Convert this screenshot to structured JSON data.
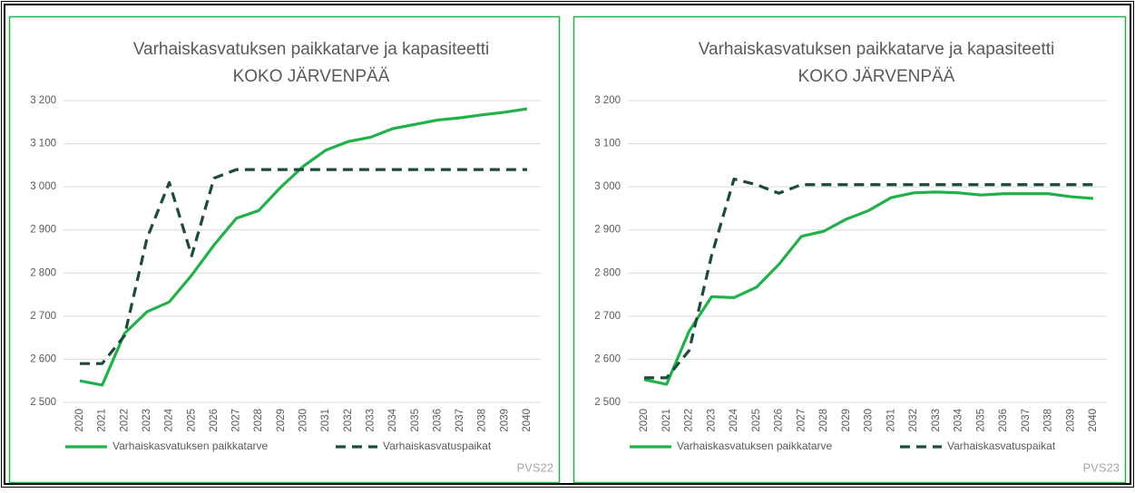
{
  "chart_data": [
    {
      "type": "line",
      "title": "Varhaiskasvatuksen paikkatarve ja kapasiteetti",
      "subtitle": "KOKO JÄRVENPÄÄ",
      "footnote": "PVS22",
      "categories": [
        "2020",
        "2021",
        "2022",
        "2023",
        "2024",
        "2025",
        "2026",
        "2027",
        "2028",
        "2029",
        "2030",
        "2031",
        "2032",
        "2033",
        "2034",
        "2035",
        "2036",
        "2037",
        "2038",
        "2039",
        "2040"
      ],
      "series": [
        {
          "name": "Varhaiskasvatuksen paikkatarve",
          "color": "#22b04b",
          "line_style": "solid",
          "values": [
            2550,
            2540,
            2660,
            2710,
            2733,
            2795,
            2865,
            2927,
            2945,
            3000,
            3048,
            3085,
            3105,
            3115,
            3135,
            3145,
            3155,
            3160,
            3167,
            3173,
            3181
          ]
        },
        {
          "name": "Varhaiskasvatuspaikat",
          "color": "#1c4a3c",
          "line_style": "dashed",
          "values": [
            2590,
            2590,
            2655,
            2880,
            3010,
            2840,
            3020,
            3040,
            3040,
            3040,
            3040,
            3040,
            3040,
            3040,
            3040,
            3040,
            3040,
            3040,
            3040,
            3040,
            3040
          ]
        }
      ],
      "ylim": [
        2500,
        3200
      ],
      "yticks": [
        {
          "value": 2500,
          "label": "2 500"
        },
        {
          "value": 2600,
          "label": "2 600"
        },
        {
          "value": 2700,
          "label": "2 700"
        },
        {
          "value": 2800,
          "label": "2 800"
        },
        {
          "value": 2900,
          "label": "2 900"
        },
        {
          "value": 3000,
          "label": "3 000"
        },
        {
          "value": 3100,
          "label": "3 100"
        },
        {
          "value": 3200,
          "label": "3 200"
        }
      ],
      "grid": true,
      "legend": "bottom"
    },
    {
      "type": "line",
      "title": "Varhaiskasvatuksen paikkatarve ja kapasiteetti",
      "subtitle": "KOKO JÄRVENPÄÄ",
      "footnote": "PVS23",
      "categories": [
        "2020",
        "2021",
        "2022",
        "2023",
        "2024",
        "2025",
        "2026",
        "2027",
        "2028",
        "2029",
        "2030",
        "2031",
        "2032",
        "2033",
        "2034",
        "2035",
        "2036",
        "2037",
        "2038",
        "2039",
        "2040"
      ],
      "series": [
        {
          "name": "Varhaiskasvatuksen paikkatarve",
          "color": "#22b04b",
          "line_style": "solid",
          "values": [
            2553,
            2542,
            2665,
            2745,
            2743,
            2767,
            2820,
            2885,
            2897,
            2925,
            2945,
            2975,
            2986,
            2988,
            2986,
            2981,
            2984,
            2984,
            2984,
            2977,
            2973
          ]
        },
        {
          "name": "Varhaiskasvatuspaikat",
          "color": "#1c4a3c",
          "line_style": "dashed",
          "values": [
            2557,
            2557,
            2620,
            2840,
            3018,
            3005,
            2985,
            3005,
            3005,
            3005,
            3005,
            3005,
            3005,
            3005,
            3005,
            3005,
            3005,
            3005,
            3005,
            3005,
            3005
          ]
        }
      ],
      "ylim": [
        2500,
        3200
      ],
      "yticks": [
        {
          "value": 2500,
          "label": "2 500"
        },
        {
          "value": 2600,
          "label": "2 600"
        },
        {
          "value": 2700,
          "label": "2 700"
        },
        {
          "value": 2800,
          "label": "2 800"
        },
        {
          "value": 2900,
          "label": "2 900"
        },
        {
          "value": 3000,
          "label": "3 000"
        },
        {
          "value": 3100,
          "label": "3 100"
        },
        {
          "value": 3200,
          "label": "3 200"
        }
      ],
      "grid": true,
      "legend": "bottom"
    }
  ]
}
